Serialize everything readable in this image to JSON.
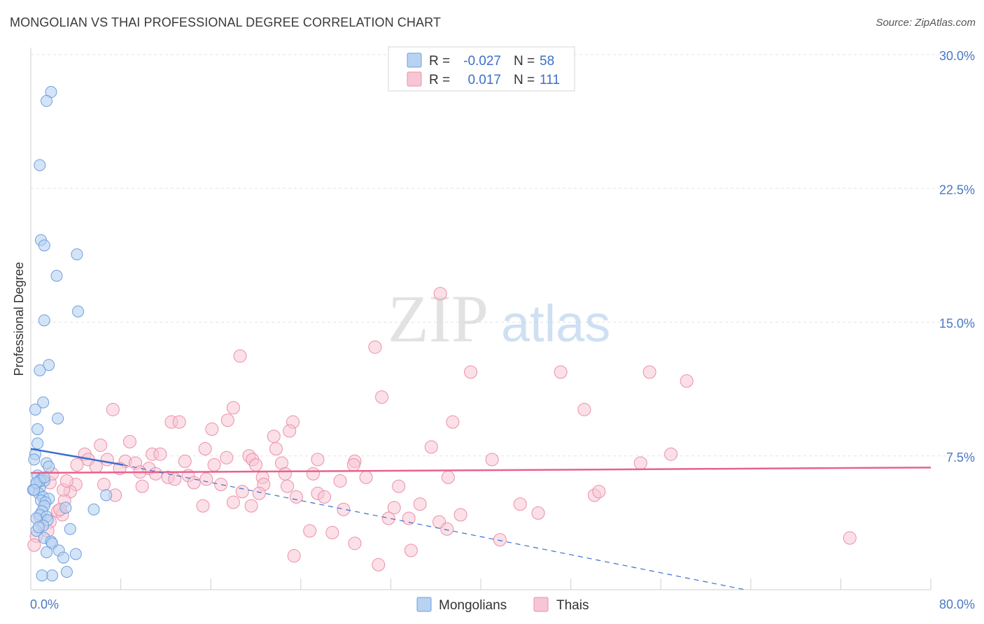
{
  "title": "MONGOLIAN VS THAI PROFESSIONAL DEGREE CORRELATION CHART",
  "source": "Source: ZipAtlas.com",
  "watermark": {
    "zip": "ZIP",
    "atlas": "atlas"
  },
  "colors": {
    "mongolian_fill": "#b8d2f2",
    "mongolian_stroke": "#6f9fde",
    "mongolian_line": "#3a6fd0",
    "thai_fill": "#f7c6d4",
    "thai_stroke": "#eb8fab",
    "thai_line": "#e8628c",
    "tick_text": "#4a78c4",
    "grid": "#e3e3e3"
  },
  "legend": {
    "rows": [
      {
        "r_label": "R =",
        "r_value": "-0.027",
        "n_label": "N =",
        "n_value": "58"
      },
      {
        "r_label": "R =",
        "r_value": "0.017",
        "n_label": "N =",
        "n_value": "111"
      }
    ]
  },
  "bottom_legend": [
    "Mongolians",
    "Thais"
  ],
  "chart_data": {
    "type": "scatter",
    "title": "MONGOLIAN VS THAI PROFESSIONAL DEGREE CORRELATION CHART",
    "xlabel": "",
    "ylabel": "Professional Degree",
    "xlim": [
      0,
      80
    ],
    "ylim": [
      0,
      30
    ],
    "x_tick_labels": [
      "0.0%",
      "80.0%"
    ],
    "y_ticks": [
      7.5,
      15.0,
      22.5,
      30.0
    ],
    "y_tick_labels": [
      "7.5%",
      "15.0%",
      "22.5%",
      "30.0%"
    ],
    "grid": true,
    "series": [
      {
        "name": "Mongolians",
        "r": -0.027,
        "n": 58,
        "trend_solid": [
          [
            0,
            7.9
          ],
          [
            8.2,
            7.0
          ]
        ],
        "trend_dashed": [
          [
            8.2,
            7.0
          ],
          [
            63.5,
            0.0
          ]
        ],
        "points": [
          [
            1.8,
            27.9
          ],
          [
            1.4,
            27.4
          ],
          [
            0.8,
            23.8
          ],
          [
            0.9,
            19.6
          ],
          [
            1.2,
            19.3
          ],
          [
            4.1,
            18.8
          ],
          [
            2.3,
            17.6
          ],
          [
            4.2,
            15.6
          ],
          [
            1.2,
            15.1
          ],
          [
            1.6,
            12.6
          ],
          [
            0.8,
            12.3
          ],
          [
            1.1,
            10.5
          ],
          [
            0.4,
            10.1
          ],
          [
            2.4,
            9.6
          ],
          [
            0.6,
            9.0
          ],
          [
            0.6,
            8.2
          ],
          [
            0.4,
            7.6
          ],
          [
            0.3,
            7.3
          ],
          [
            1.4,
            7.1
          ],
          [
            1.6,
            6.9
          ],
          [
            0.6,
            6.4
          ],
          [
            0.9,
            6.2
          ],
          [
            1.2,
            6.1
          ],
          [
            0.5,
            5.9
          ],
          [
            0.8,
            5.7
          ],
          [
            0.2,
            5.6
          ],
          [
            0.7,
            5.4
          ],
          [
            6.7,
            5.3
          ],
          [
            1.1,
            5.2
          ],
          [
            1.6,
            5.1
          ],
          [
            0.9,
            5.0
          ],
          [
            1.3,
            4.9
          ],
          [
            1.2,
            4.7
          ],
          [
            3.1,
            4.6
          ],
          [
            5.6,
            4.5
          ],
          [
            1.0,
            4.4
          ],
          [
            0.8,
            4.2
          ],
          [
            1.4,
            4.1
          ],
          [
            0.5,
            4.0
          ],
          [
            1.5,
            3.9
          ],
          [
            1.1,
            3.6
          ],
          [
            0.5,
            3.3
          ],
          [
            3.5,
            3.4
          ],
          [
            1.2,
            2.9
          ],
          [
            1.8,
            2.7
          ],
          [
            1.9,
            2.6
          ],
          [
            2.5,
            2.2
          ],
          [
            1.4,
            2.1
          ],
          [
            4.0,
            2.0
          ],
          [
            2.9,
            1.8
          ],
          [
            3.2,
            1.0
          ],
          [
            1.9,
            0.8
          ],
          [
            1.0,
            0.8
          ],
          [
            0.8,
            6.1
          ],
          [
            0.5,
            6.0
          ],
          [
            0.3,
            5.6
          ],
          [
            0.7,
            3.5
          ],
          [
            1.2,
            6.3
          ]
        ]
      },
      {
        "name": "Thais",
        "r": 0.017,
        "n": 111,
        "trend_solid": [
          [
            0,
            6.55
          ],
          [
            80,
            6.85
          ]
        ],
        "points": [
          [
            36.4,
            16.6
          ],
          [
            30.6,
            13.6
          ],
          [
            18.6,
            13.1
          ],
          [
            39.1,
            12.2
          ],
          [
            47.1,
            12.2
          ],
          [
            55.0,
            12.2
          ],
          [
            58.3,
            11.7
          ],
          [
            31.2,
            10.8
          ],
          [
            18.0,
            10.2
          ],
          [
            7.3,
            10.1
          ],
          [
            49.2,
            10.1
          ],
          [
            12.5,
            9.4
          ],
          [
            13.2,
            9.4
          ],
          [
            17.5,
            9.5
          ],
          [
            23.3,
            9.4
          ],
          [
            37.5,
            9.4
          ],
          [
            16.1,
            9.0
          ],
          [
            23.0,
            8.9
          ],
          [
            21.6,
            8.6
          ],
          [
            8.8,
            8.3
          ],
          [
            6.2,
            8.1
          ],
          [
            15.5,
            7.9
          ],
          [
            21.8,
            7.9
          ],
          [
            35.6,
            8.0
          ],
          [
            4.8,
            7.6
          ],
          [
            10.8,
            7.6
          ],
          [
            11.5,
            7.6
          ],
          [
            19.4,
            7.5
          ],
          [
            17.4,
            7.4
          ],
          [
            5.1,
            7.3
          ],
          [
            6.8,
            7.3
          ],
          [
            8.4,
            7.2
          ],
          [
            9.3,
            7.1
          ],
          [
            13.7,
            7.2
          ],
          [
            19.7,
            7.3
          ],
          [
            25.5,
            7.3
          ],
          [
            28.8,
            7.2
          ],
          [
            41.0,
            7.3
          ],
          [
            54.2,
            7.1
          ],
          [
            56.9,
            7.6
          ],
          [
            4.1,
            7.0
          ],
          [
            5.8,
            6.9
          ],
          [
            7.9,
            6.8
          ],
          [
            10.5,
            6.8
          ],
          [
            16.3,
            7.0
          ],
          [
            20.0,
            7.0
          ],
          [
            22.3,
            7.1
          ],
          [
            28.7,
            7.0
          ],
          [
            9.7,
            6.6
          ],
          [
            11.1,
            6.5
          ],
          [
            12.2,
            6.3
          ],
          [
            12.8,
            6.2
          ],
          [
            14.0,
            6.4
          ],
          [
            15.6,
            6.2
          ],
          [
            20.6,
            6.3
          ],
          [
            22.6,
            6.5
          ],
          [
            25.1,
            6.5
          ],
          [
            27.5,
            6.1
          ],
          [
            29.8,
            6.3
          ],
          [
            37.1,
            6.3
          ],
          [
            1.7,
            6.0
          ],
          [
            4.0,
            5.9
          ],
          [
            6.5,
            5.9
          ],
          [
            9.9,
            5.8
          ],
          [
            14.5,
            6.0
          ],
          [
            16.9,
            5.9
          ],
          [
            20.7,
            5.9
          ],
          [
            22.8,
            5.8
          ],
          [
            32.7,
            5.8
          ],
          [
            3.5,
            5.5
          ],
          [
            7.5,
            5.3
          ],
          [
            18.8,
            5.5
          ],
          [
            20.3,
            5.4
          ],
          [
            23.6,
            5.2
          ],
          [
            25.5,
            5.4
          ],
          [
            26.1,
            5.2
          ],
          [
            50.1,
            5.3
          ],
          [
            50.5,
            5.5
          ],
          [
            3.0,
            5.0
          ],
          [
            15.3,
            4.7
          ],
          [
            18.0,
            4.9
          ],
          [
            19.6,
            4.7
          ],
          [
            27.8,
            4.5
          ],
          [
            32.3,
            4.6
          ],
          [
            34.6,
            4.8
          ],
          [
            43.5,
            4.8
          ],
          [
            2.4,
            4.4
          ],
          [
            2.8,
            4.2
          ],
          [
            31.8,
            4.0
          ],
          [
            33.6,
            4.0
          ],
          [
            38.2,
            4.2
          ],
          [
            45.1,
            4.3
          ],
          [
            1.7,
            3.8
          ],
          [
            36.3,
            3.8
          ],
          [
            37.0,
            3.4
          ],
          [
            24.8,
            3.3
          ],
          [
            26.8,
            3.2
          ],
          [
            41.7,
            2.8
          ],
          [
            72.8,
            2.9
          ],
          [
            28.8,
            2.6
          ],
          [
            33.8,
            2.2
          ],
          [
            23.4,
            1.9
          ],
          [
            30.9,
            1.4
          ],
          [
            1.5,
            3.3
          ],
          [
            2.9,
            5.6
          ],
          [
            3.2,
            6.1
          ],
          [
            1.9,
            6.5
          ],
          [
            2.6,
            4.5
          ],
          [
            0.8,
            4.1
          ],
          [
            0.5,
            3.0
          ],
          [
            0.3,
            2.5
          ]
        ]
      }
    ]
  }
}
